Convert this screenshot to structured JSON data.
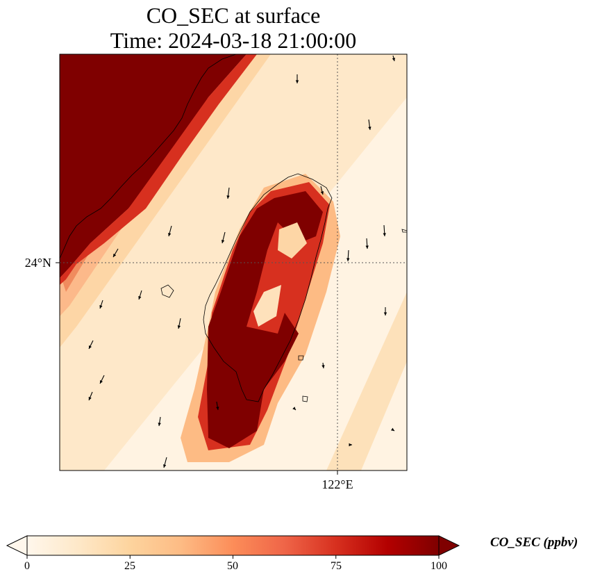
{
  "chart_data": {
    "type": "heatmap",
    "title": "CO_SEC at surface",
    "subtitle": "Time: 2024-03-18 21:00:00",
    "lat_label": "24°N",
    "lon_label": "122°E",
    "gridlines": "dotted",
    "variable": "CO_SEC",
    "colorbar": {
      "label": "CO_SEC (ppbv)",
      "range": [
        0,
        100
      ],
      "ticks": [
        0,
        25,
        50,
        75,
        100
      ],
      "tick_labels": [
        "0",
        "25",
        "50",
        "75",
        "100"
      ],
      "extend": "both",
      "orientation": "horizontal",
      "colormap": [
        "#fff7ec",
        "#fee8c8",
        "#fdd49e",
        "#fdbb84",
        "#fc8d59",
        "#ef6548",
        "#d7301f",
        "#b30000",
        "#7f0000"
      ]
    },
    "features": [
      "coastlines",
      "wind-vectors"
    ]
  }
}
